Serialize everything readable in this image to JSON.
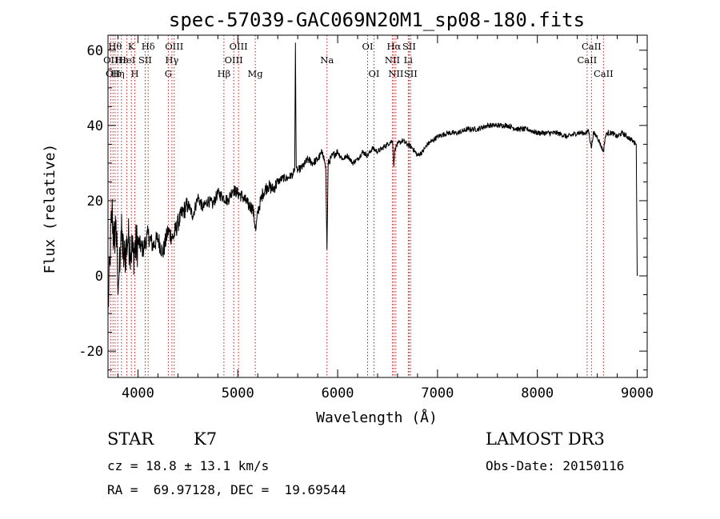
{
  "chart_data": {
    "type": "line",
    "title": "spec-57039-GAC069N20M1_sp08-180.fits",
    "xlabel": "Wavelength (Å)",
    "ylabel": "Flux (relative)",
    "xlim": [
      3700,
      9100
    ],
    "ylim": [
      -27,
      64
    ],
    "xticks": [
      4000,
      5000,
      6000,
      7000,
      8000,
      9000
    ],
    "yticks": [
      -20,
      0,
      20,
      40,
      60
    ],
    "line_color": "#000000",
    "marker_color": "#b22222",
    "series": [
      {
        "name": "flux",
        "x": [
          3700,
          3720,
          3740,
          3760,
          3780,
          3800,
          3830,
          3860,
          3900,
          3950,
          4000,
          4050,
          4100,
          4150,
          4200,
          4250,
          4300,
          4350,
          4400,
          4450,
          4500,
          4550,
          4600,
          4650,
          4700,
          4750,
          4800,
          4850,
          4900,
          4950,
          5000,
          5050,
          5100,
          5150,
          5180,
          5200,
          5250,
          5300,
          5350,
          5400,
          5450,
          5500,
          5550,
          5570,
          5577,
          5585,
          5600,
          5650,
          5700,
          5750,
          5800,
          5850,
          5880,
          5893,
          5905,
          5950,
          6000,
          6050,
          6100,
          6150,
          6200,
          6250,
          6300,
          6350,
          6400,
          6450,
          6500,
          6550,
          6563,
          6575,
          6600,
          6650,
          6700,
          6750,
          6800,
          6850,
          6900,
          6950,
          7000,
          7100,
          7200,
          7300,
          7400,
          7500,
          7600,
          7700,
          7800,
          7900,
          8000,
          8100,
          8200,
          8300,
          8400,
          8450,
          8498,
          8510,
          8542,
          8560,
          8600,
          8662,
          8680,
          8700,
          8750,
          8800,
          8850,
          8900,
          8950,
          8990,
          9000
        ],
        "y": [
          -10,
          5,
          18,
          8,
          15,
          -5,
          12,
          4,
          10,
          6,
          9,
          7,
          11,
          8,
          10,
          6,
          12,
          10,
          14,
          17,
          19,
          16,
          21,
          18,
          20,
          19,
          22,
          21,
          20,
          23,
          22,
          21,
          19,
          18,
          12,
          17,
          22,
          24,
          23,
          25,
          26,
          26,
          27,
          28,
          62,
          29,
          28,
          29,
          31,
          30,
          31,
          33,
          29,
          7,
          30,
          32,
          33,
          31,
          32,
          30,
          31,
          33,
          32,
          34,
          33,
          34,
          35,
          36,
          29,
          34,
          35,
          36,
          35,
          34,
          32,
          33,
          35,
          36,
          37,
          38,
          38,
          39,
          39,
          40,
          40,
          40,
          39,
          39,
          38,
          38,
          38,
          37,
          38,
          38,
          38,
          39,
          34,
          38,
          37,
          33,
          37,
          38,
          38,
          37,
          38,
          37,
          36,
          35,
          0
        ]
      }
    ],
    "line_markers": [
      {
        "x": 3727,
        "label": "OII",
        "row": 2
      },
      {
        "x": 3750,
        "label": "OII",
        "row": 3
      },
      {
        "x": 3771,
        "label": "Hθ",
        "row": 1
      },
      {
        "x": 3798,
        "label": "Hη",
        "row": 3
      },
      {
        "x": 3835,
        "label": "Hε",
        "row": 2
      },
      {
        "x": 3889,
        "label": "HeI",
        "row": 2
      },
      {
        "x": 3934,
        "label": "K",
        "row": 1
      },
      {
        "x": 3969,
        "label": "H",
        "row": 3
      },
      {
        "x": 4072,
        "label": "SII",
        "row": 2
      },
      {
        "x": 4102,
        "label": "Hδ",
        "row": 1
      },
      {
        "x": 4304,
        "label": "G",
        "row": 3
      },
      {
        "x": 4340,
        "label": "Hγ",
        "row": 2
      },
      {
        "x": 4363,
        "label": "OIII",
        "row": 1
      },
      {
        "x": 4861,
        "label": "Hβ",
        "row": 3
      },
      {
        "x": 4959,
        "label": "OIII",
        "row": 2
      },
      {
        "x": 5007,
        "label": "OIII",
        "row": 1
      },
      {
        "x": 5175,
        "label": "Mg",
        "row": 3
      },
      {
        "x": 5893,
        "label": "Na",
        "row": 2
      },
      {
        "x": 6300,
        "label": "OI",
        "row": 1
      },
      {
        "x": 6364,
        "label": "OI",
        "row": 3
      },
      {
        "x": 6548,
        "label": "NII",
        "row": 2
      },
      {
        "x": 6563,
        "label": "Hα",
        "row": 1
      },
      {
        "x": 6583,
        "label": "NII",
        "row": 3
      },
      {
        "x": 6707,
        "label": "Li",
        "row": 2
      },
      {
        "x": 6716,
        "label": "SII",
        "row": 1
      },
      {
        "x": 6731,
        "label": "SII",
        "row": 3
      },
      {
        "x": 8498,
        "label": "CaII",
        "row": 2
      },
      {
        "x": 8542,
        "label": "CaII",
        "row": 1
      },
      {
        "x": 8662,
        "label": "CaII",
        "row": 3
      }
    ]
  },
  "info": {
    "class": "STAR",
    "subclass": "K7",
    "cz": "cz = 18.8 ± 13.1 km/s",
    "radec": "RA =  69.97128, DEC =  19.69544",
    "survey": "LAMOST DR3",
    "obs_date": "Obs-Date: 20150116"
  }
}
